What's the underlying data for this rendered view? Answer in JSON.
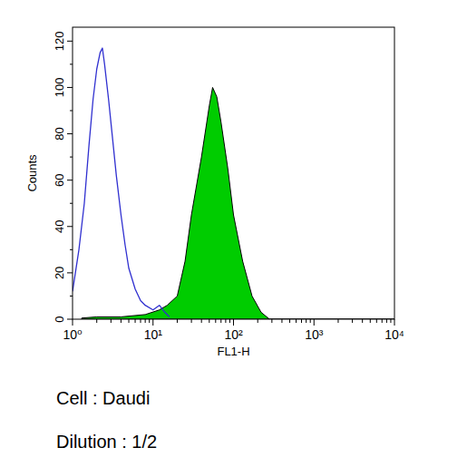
{
  "chart_data": {
    "type": "area",
    "x_label": "FL1-H",
    "y_label": "Counts",
    "log": "x",
    "xlim": [
      1,
      10000
    ],
    "xticks": [
      {
        "value": 1,
        "label": "10⁰"
      },
      {
        "value": 10,
        "label": "10¹"
      },
      {
        "value": 100,
        "label": "10²"
      },
      {
        "value": 1000,
        "label": "10³"
      },
      {
        "value": 10000,
        "label": "10⁴"
      }
    ],
    "ylim": [
      0,
      126
    ],
    "yticks": [
      0,
      20,
      40,
      60,
      80,
      100,
      120
    ],
    "annotations": [
      "Cell : Daudi",
      "Dilution : 1/2"
    ],
    "series": [
      {
        "type": "line",
        "color": "#3030d0",
        "x": [
          1.0,
          1.2,
          1.4,
          1.6,
          1.8,
          2.0,
          2.2,
          2.35,
          2.5,
          2.8,
          3.1,
          3.5,
          4.0,
          4.5,
          5.0,
          6.0,
          7.0,
          8.0,
          10,
          12,
          14,
          16
        ],
        "values": [
          12,
          30,
          50,
          75,
          95,
          108,
          115,
          117,
          110,
          95,
          80,
          62,
          45,
          32,
          22,
          13,
          8,
          6,
          4,
          6,
          3,
          1
        ]
      },
      {
        "type": "area",
        "color": "#00cc00",
        "x": [
          1.3,
          2,
          4,
          8,
          12,
          15,
          20,
          25,
          30,
          40,
          50,
          55,
          62,
          70,
          85,
          100,
          130,
          170,
          220,
          280,
          1000,
          10000
        ],
        "values": [
          0.5,
          1,
          1,
          2,
          4,
          6,
          10,
          25,
          45,
          70,
          92,
          100,
          96,
          85,
          65,
          45,
          25,
          10,
          3,
          0,
          0,
          0
        ]
      }
    ]
  }
}
